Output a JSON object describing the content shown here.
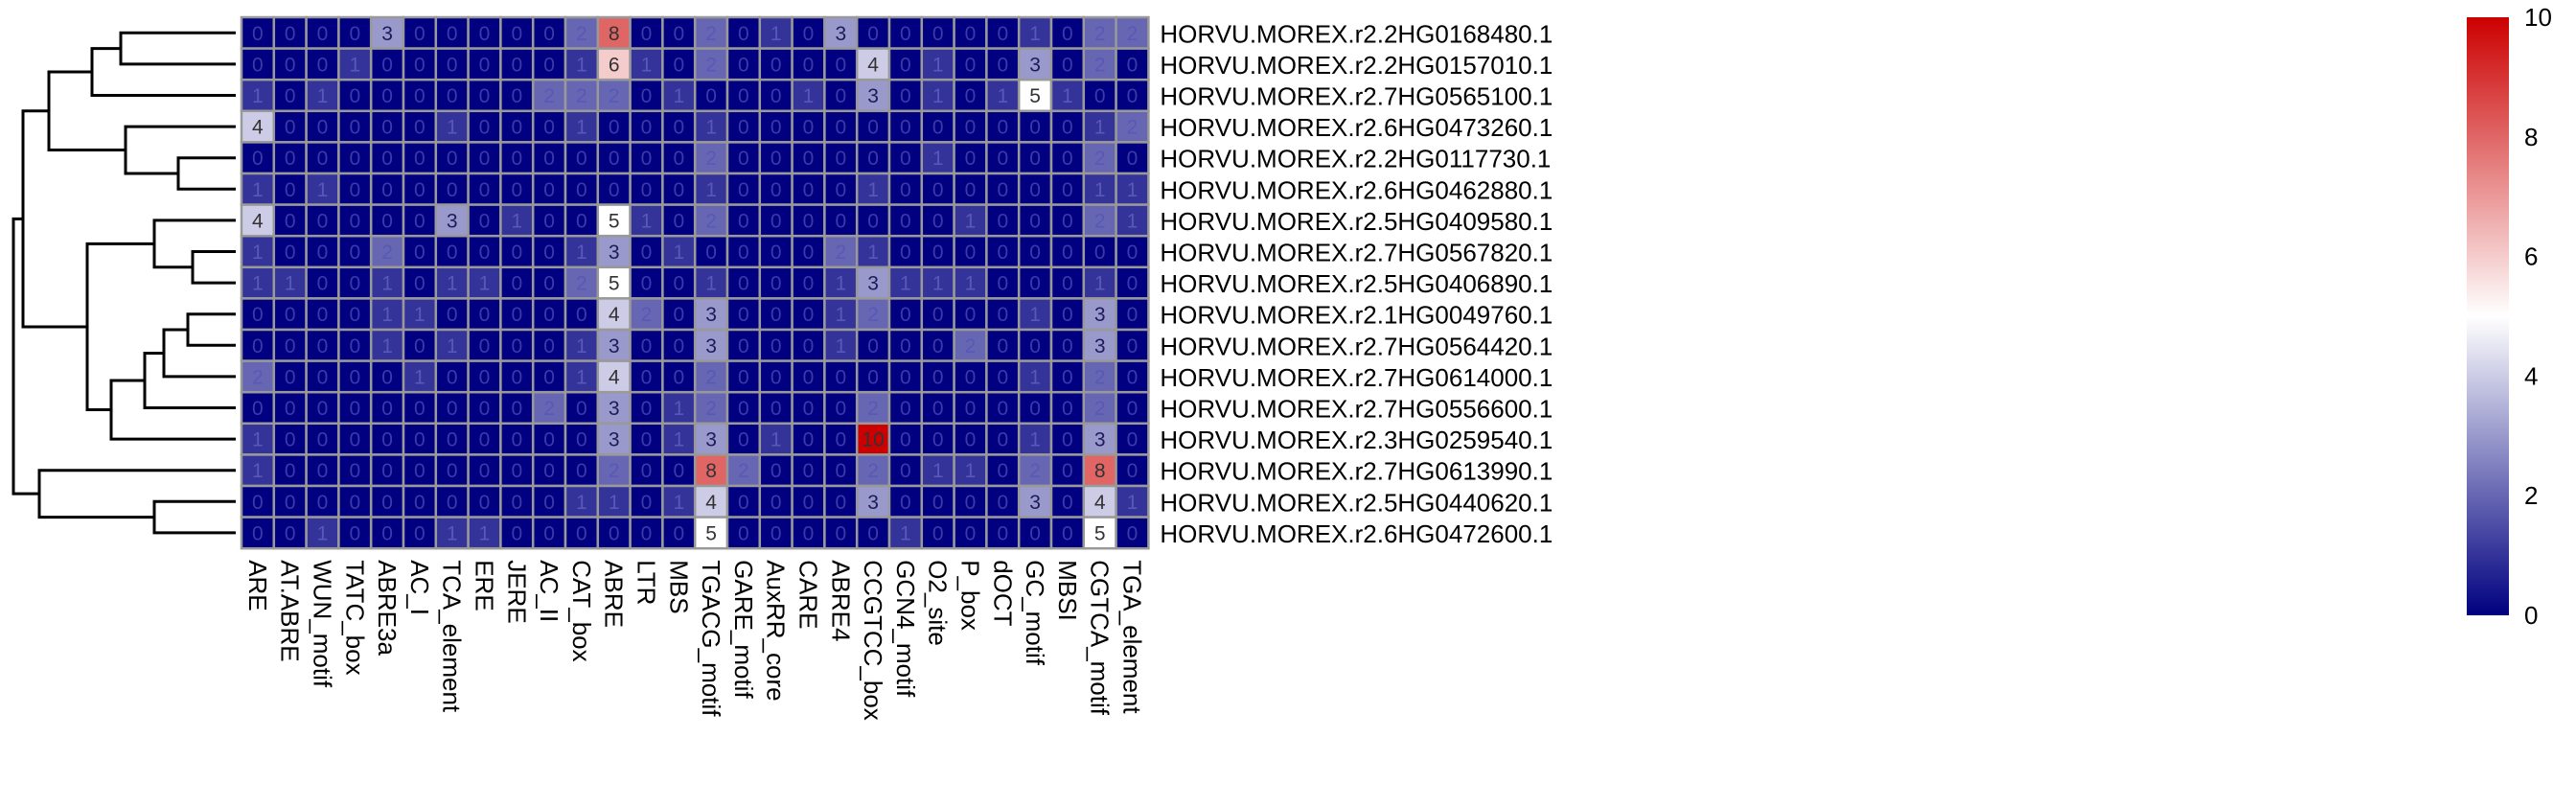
{
  "chart_data": {
    "type": "heatmap",
    "title": "",
    "xlabel": "",
    "ylabel": "",
    "columns": [
      "ARE",
      "AT.ABRE",
      "WUN_motif",
      "TATC_box",
      "ABRE3a",
      "AC_I",
      "TCA_element",
      "ERE",
      "JERE",
      "AC_II",
      "CAT_box",
      "ABRE",
      "LTR",
      "MBS",
      "TGACG_motif",
      "GARE_motif",
      "AuxRR_core",
      "CARE",
      "ABRE4",
      "CCGTCC_box",
      "GCN4_motif",
      "O2_site",
      "P_box",
      "dOCT",
      "GC_motif",
      "MBSI",
      "CGTCA_motif",
      "TGA_element"
    ],
    "rows": [
      "HORVU.MOREX.r2.2HG0168480.1",
      "HORVU.MOREX.r2.2HG0157010.1",
      "HORVU.MOREX.r2.7HG0565100.1",
      "HORVU.MOREX.r2.6HG0473260.1",
      "HORVU.MOREX.r2.2HG0117730.1",
      "HORVU.MOREX.r2.6HG0462880.1",
      "HORVU.MOREX.r2.5HG0409580.1",
      "HORVU.MOREX.r2.7HG0567820.1",
      "HORVU.MOREX.r2.5HG0406890.1",
      "HORVU.MOREX.r2.1HG0049760.1",
      "HORVU.MOREX.r2.7HG0564420.1",
      "HORVU.MOREX.r2.7HG0614000.1",
      "HORVU.MOREX.r2.7HG0556600.1",
      "HORVU.MOREX.r2.3HG0259540.1",
      "HORVU.MOREX.r2.7HG0613990.1",
      "HORVU.MOREX.r2.5HG0440620.1",
      "HORVU.MOREX.r2.6HG0472600.1"
    ],
    "values": [
      [
        0,
        0,
        0,
        0,
        3,
        0,
        0,
        0,
        0,
        0,
        2,
        8,
        0,
        0,
        2,
        0,
        1,
        0,
        3,
        0,
        0,
        0,
        0,
        0,
        1,
        0,
        2,
        2
      ],
      [
        0,
        0,
        0,
        1,
        0,
        0,
        0,
        0,
        0,
        0,
        1,
        6,
        1,
        0,
        2,
        0,
        0,
        0,
        0,
        4,
        0,
        1,
        0,
        0,
        3,
        0,
        2,
        0
      ],
      [
        1,
        0,
        1,
        0,
        0,
        0,
        0,
        0,
        0,
        2,
        2,
        2,
        0,
        1,
        0,
        0,
        0,
        1,
        0,
        3,
        0,
        1,
        0,
        1,
        5,
        1,
        0,
        0
      ],
      [
        4,
        0,
        0,
        0,
        0,
        0,
        1,
        0,
        0,
        0,
        1,
        0,
        0,
        0,
        1,
        0,
        0,
        0,
        0,
        0,
        0,
        0,
        0,
        0,
        0,
        0,
        1,
        2
      ],
      [
        0,
        0,
        0,
        0,
        0,
        0,
        0,
        0,
        0,
        0,
        0,
        0,
        0,
        0,
        2,
        0,
        0,
        0,
        0,
        0,
        0,
        1,
        0,
        0,
        0,
        0,
        2,
        0
      ],
      [
        1,
        0,
        1,
        0,
        0,
        0,
        0,
        0,
        0,
        0,
        0,
        0,
        0,
        0,
        1,
        0,
        0,
        0,
        0,
        1,
        0,
        0,
        0,
        0,
        0,
        0,
        1,
        1
      ],
      [
        4,
        0,
        0,
        0,
        0,
        0,
        3,
        0,
        1,
        0,
        0,
        5,
        1,
        0,
        2,
        0,
        0,
        0,
        0,
        0,
        0,
        0,
        1,
        0,
        0,
        0,
        2,
        1
      ],
      [
        1,
        0,
        0,
        0,
        2,
        0,
        0,
        0,
        0,
        0,
        1,
        3,
        0,
        1,
        0,
        0,
        0,
        0,
        2,
        1,
        0,
        0,
        0,
        0,
        0,
        0,
        0,
        0
      ],
      [
        1,
        1,
        0,
        0,
        1,
        0,
        1,
        1,
        0,
        0,
        2,
        5,
        0,
        0,
        1,
        0,
        0,
        0,
        1,
        3,
        1,
        1,
        1,
        0,
        0,
        0,
        1,
        0
      ],
      [
        0,
        0,
        0,
        0,
        1,
        1,
        0,
        0,
        0,
        0,
        0,
        4,
        2,
        0,
        3,
        0,
        0,
        0,
        1,
        2,
        0,
        0,
        0,
        0,
        1,
        0,
        3,
        0
      ],
      [
        0,
        0,
        0,
        0,
        1,
        0,
        1,
        0,
        0,
        0,
        1,
        3,
        0,
        0,
        3,
        0,
        0,
        0,
        1,
        0,
        0,
        0,
        2,
        0,
        0,
        0,
        3,
        0
      ],
      [
        2,
        0,
        0,
        0,
        0,
        1,
        0,
        0,
        0,
        0,
        1,
        4,
        0,
        0,
        2,
        0,
        0,
        0,
        0,
        0,
        0,
        0,
        0,
        0,
        1,
        0,
        2,
        0
      ],
      [
        0,
        0,
        0,
        0,
        0,
        0,
        0,
        0,
        0,
        2,
        0,
        3,
        0,
        1,
        2,
        0,
        0,
        0,
        0,
        2,
        0,
        0,
        0,
        0,
        0,
        0,
        2,
        0
      ],
      [
        1,
        0,
        0,
        0,
        0,
        0,
        0,
        0,
        0,
        0,
        0,
        3,
        0,
        1,
        3,
        0,
        1,
        0,
        0,
        10,
        0,
        0,
        0,
        0,
        1,
        0,
        3,
        0
      ],
      [
        1,
        0,
        0,
        0,
        0,
        0,
        0,
        0,
        0,
        0,
        0,
        2,
        0,
        0,
        8,
        2,
        0,
        0,
        0,
        2,
        0,
        1,
        1,
        0,
        2,
        0,
        8,
        0
      ],
      [
        0,
        0,
        0,
        0,
        0,
        0,
        0,
        0,
        0,
        0,
        1,
        1,
        0,
        1,
        4,
        0,
        0,
        0,
        0,
        3,
        0,
        0,
        0,
        0,
        3,
        0,
        4,
        1
      ],
      [
        0,
        0,
        1,
        0,
        0,
        0,
        1,
        1,
        0,
        0,
        0,
        0,
        0,
        0,
        5,
        0,
        0,
        0,
        0,
        0,
        1,
        0,
        0,
        0,
        0,
        0,
        5,
        0
      ]
    ],
    "color_scale": {
      "min": 0,
      "max": 10,
      "low_color": "#000080",
      "mid_color": "#ffffff",
      "high_color": "#cc0000",
      "mid_value": 5
    },
    "legend_ticks": [
      0,
      2,
      4,
      6,
      8,
      10
    ],
    "legend_placement": "right",
    "dendrogram": "left",
    "cell_border_color": "#999999"
  }
}
